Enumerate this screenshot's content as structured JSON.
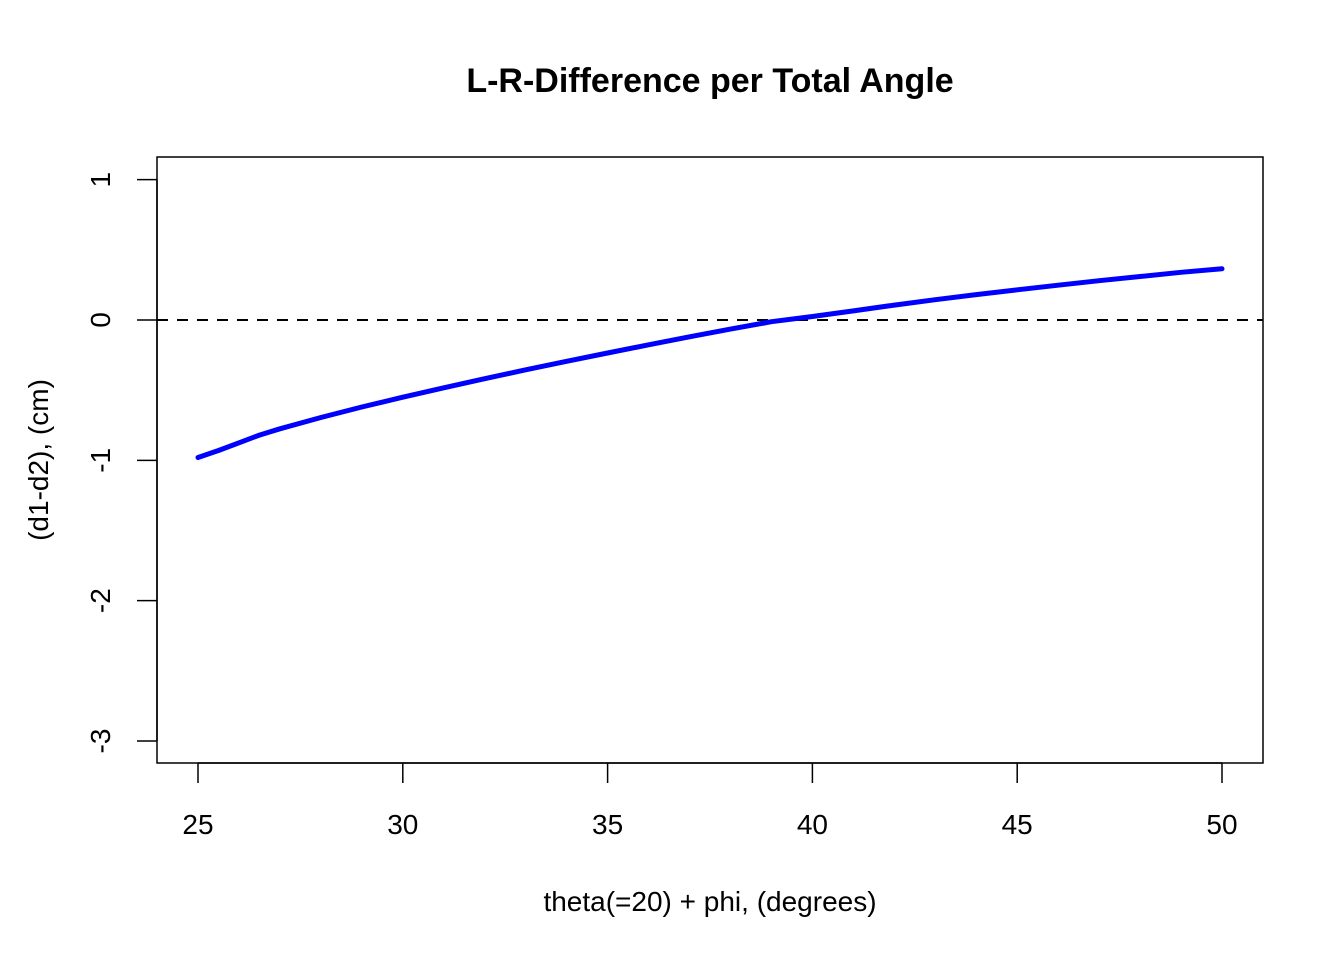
{
  "chart_data": {
    "type": "line",
    "title": "L-R-Difference per Total Angle",
    "xlabel": "theta(=20) + phi, (degrees)",
    "ylabel": "(d1-d2), (cm)",
    "xlim": [
      24,
      51
    ],
    "ylim": [
      -3.15,
      1.17
    ],
    "x_ticks": [
      25,
      30,
      35,
      40,
      45,
      50
    ],
    "x_tick_labels": [
      "25",
      "30",
      "35",
      "40",
      "45",
      "50"
    ],
    "y_ticks": [
      -3,
      -2,
      -1,
      0,
      1
    ],
    "y_tick_labels": [
      "-3",
      "-2",
      "-1",
      "0",
      "1"
    ],
    "grid": false,
    "legend": "none",
    "reference_line": {
      "y": 0,
      "style": "dashed",
      "color": "#000000"
    },
    "series": [
      {
        "color": "#0000ff",
        "x": [
          25,
          25.5,
          26,
          26.5,
          27,
          28,
          29,
          30,
          31,
          32,
          33,
          34,
          35,
          36,
          37,
          38,
          39,
          40,
          41,
          42,
          43,
          44,
          45,
          46,
          47,
          48,
          49,
          50
        ],
        "y": [
          -0.98,
          -0.93,
          -0.875,
          -0.82,
          -0.775,
          -0.695,
          -0.62,
          -0.55,
          -0.483,
          -0.418,
          -0.355,
          -0.294,
          -0.235,
          -0.177,
          -0.12,
          -0.065,
          -0.012,
          0.025,
          0.065,
          0.106,
          0.145,
          0.181,
          0.215,
          0.248,
          0.28,
          0.31,
          0.34,
          0.365
        ]
      }
    ]
  }
}
